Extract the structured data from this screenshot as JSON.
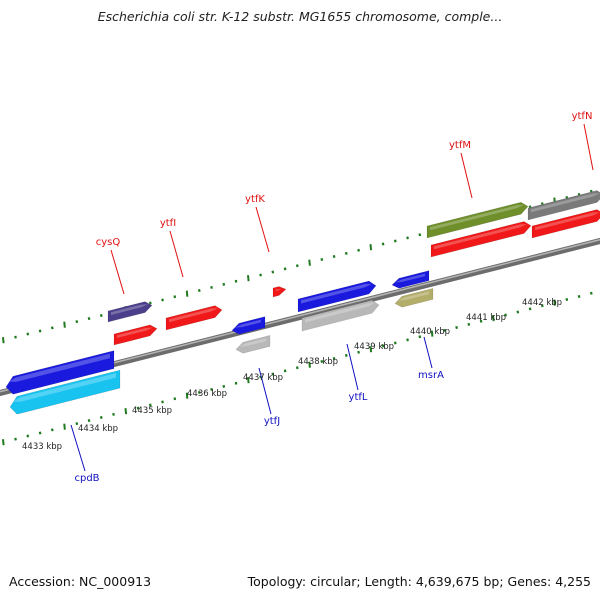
{
  "title": "Escherichia coli str. K-12 substr. MG1655 chromosome, comple...",
  "footer": {
    "accession_label": "Accession: NC_000913",
    "stats_label": "Topology: circular; Length: 4,639,675 bp; Genes: 4,255"
  },
  "colors": {
    "backbone": "#8a8a8a",
    "tick": "#1f7a1f",
    "upper_label": "#e01010",
    "lower_label": "#1010c0"
  },
  "kbp_labels": [
    {
      "text": "4433 kbp"
    },
    {
      "text": "4434 kbp"
    },
    {
      "text": "4435 kbp"
    },
    {
      "text": "4436 kbp"
    },
    {
      "text": "4437 kbp"
    },
    {
      "text": "4438 kbp"
    },
    {
      "text": "4439 kbp"
    },
    {
      "text": "4440 kbp"
    },
    {
      "text": "4441 kbp"
    },
    {
      "text": "4442 kbp"
    }
  ],
  "features": [
    {
      "name": "cpdB",
      "color": "#1a1adf",
      "strand": "minus",
      "track": "lower-1"
    },
    {
      "name": "cpdB-product",
      "color": "#19c3f0",
      "strand": "minus",
      "track": "lower-2"
    },
    {
      "name": "cysQ",
      "color": "#4b3f8c",
      "strand": "plus",
      "track": "upper-2"
    },
    {
      "name": "cysQ-product",
      "color": "#f01818",
      "strand": "plus",
      "track": "upper-1"
    },
    {
      "name": "ytfI",
      "color": "#f01818",
      "strand": "plus",
      "track": "upper-1"
    },
    {
      "name": "ytfJ",
      "color": "#1a1adf",
      "strand": "minus",
      "track": "lower-1"
    },
    {
      "name": "ytfJ-product",
      "color": "#b8b8b8",
      "strand": "minus",
      "track": "lower-2"
    },
    {
      "name": "ytfK",
      "color": "#f01818",
      "strand": "plus",
      "track": "upper-1"
    },
    {
      "name": "ytfL",
      "color": "#1a1adf",
      "strand": "plus",
      "track": "lower-1"
    },
    {
      "name": "ytfL-product",
      "color": "#b8b8b8",
      "strand": "plus",
      "track": "lower-2"
    },
    {
      "name": "msrA",
      "color": "#1a1adf",
      "strand": "minus",
      "track": "lower-1"
    },
    {
      "name": "msrA-product",
      "color": "#b3ad6a",
      "strand": "minus",
      "track": "lower-2"
    },
    {
      "name": "ytfM",
      "color": "#6e8f2a",
      "strand": "plus",
      "track": "upper-2"
    },
    {
      "name": "ytfM-product",
      "color": "#f01818",
      "strand": "plus",
      "track": "upper-1"
    },
    {
      "name": "ytfN",
      "color": "#7a7a7a",
      "strand": "plus",
      "track": "upper-2"
    },
    {
      "name": "ytfN-product",
      "color": "#f01818",
      "strand": "plus",
      "track": "upper-1"
    }
  ],
  "gene_labels": [
    {
      "text": "cysQ",
      "side": "upper"
    },
    {
      "text": "ytfI",
      "side": "upper"
    },
    {
      "text": "ytfK",
      "side": "upper"
    },
    {
      "text": "ytfM",
      "side": "upper"
    },
    {
      "text": "ytfN",
      "side": "upper"
    },
    {
      "text": "cpdB",
      "side": "lower"
    },
    {
      "text": "ytfJ",
      "side": "lower"
    },
    {
      "text": "ytfL",
      "side": "lower"
    },
    {
      "text": "msrA",
      "side": "lower"
    }
  ]
}
